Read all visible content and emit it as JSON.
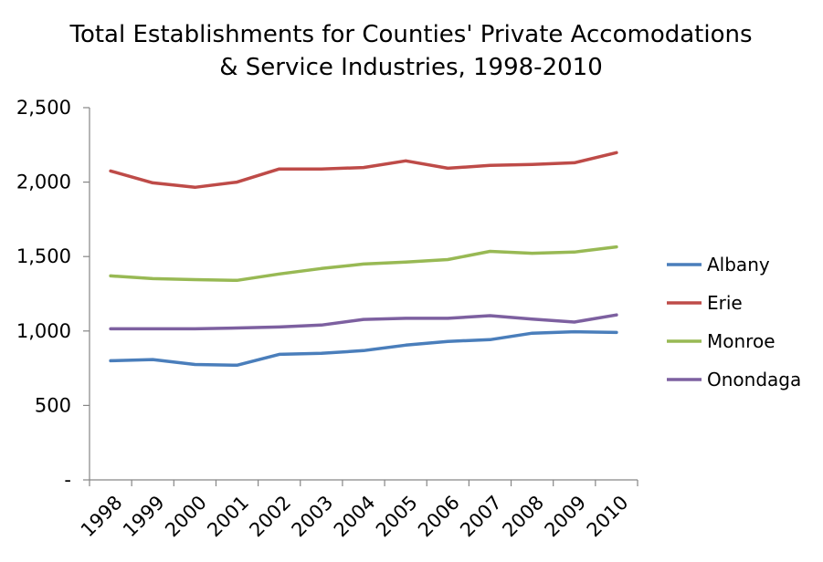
{
  "chart_data": {
    "type": "line",
    "title_line1": "Total Establishments for Counties' Private Accomodations",
    "title_line2": "& Service Industries, 1998-2010",
    "xlabel": "",
    "ylabel": "",
    "categories": [
      "1998",
      "1999",
      "2000",
      "2001",
      "2002",
      "2003",
      "2004",
      "2005",
      "2006",
      "2007",
      "2008",
      "2009",
      "2010"
    ],
    "y_ticks": [
      {
        "value": 0,
        "label": "-"
      },
      {
        "value": 500,
        "label": "500"
      },
      {
        "value": 1000,
        "label": "1,000"
      },
      {
        "value": 1500,
        "label": "1,500"
      },
      {
        "value": 2000,
        "label": "2,000"
      },
      {
        "value": 2500,
        "label": "2,500"
      }
    ],
    "ylim": [
      0,
      2500
    ],
    "grid": false,
    "legend_position": "right",
    "series": [
      {
        "name": "Albany",
        "color": "#4A7EBB",
        "values": [
          800,
          808,
          775,
          770,
          843,
          850,
          868,
          905,
          930,
          942,
          985,
          995,
          990
        ]
      },
      {
        "name": "Erie",
        "color": "#BE4B48",
        "values": [
          2075,
          1995,
          1965,
          2000,
          2088,
          2088,
          2098,
          2143,
          2093,
          2112,
          2118,
          2130,
          2198
        ]
      },
      {
        "name": "Monroe",
        "color": "#98B954",
        "values": [
          1370,
          1352,
          1345,
          1340,
          1383,
          1420,
          1450,
          1463,
          1480,
          1535,
          1522,
          1530,
          1565
        ]
      },
      {
        "name": "Onondaga",
        "color": "#7D60A0",
        "values": [
          1015,
          1015,
          1015,
          1020,
          1027,
          1040,
          1078,
          1085,
          1085,
          1103,
          1080,
          1060,
          1108
        ]
      }
    ]
  }
}
